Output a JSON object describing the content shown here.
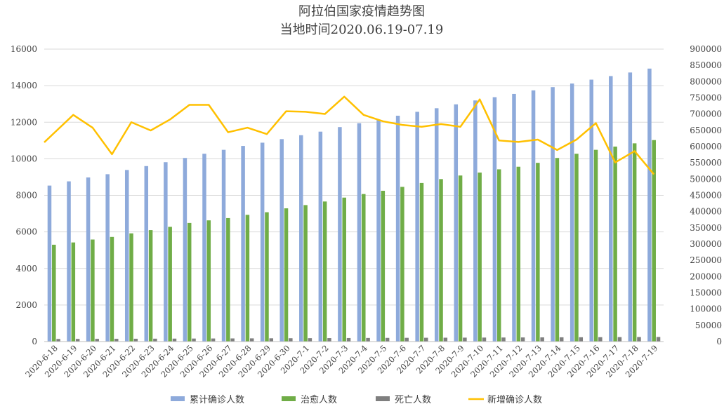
{
  "chart_data": {
    "type": "bar",
    "title": "阿拉伯国家疫情趋势图",
    "subtitle": "当地时间2020.06.19-07.19",
    "categories": [
      "2020-6-18",
      "2020-6-19",
      "2020-6-20",
      "2020-6-21",
      "2020-6-22",
      "2020-6-23",
      "2020-6-24",
      "2020-6-25",
      "2020-6-26",
      "2020-6-27",
      "2020-6-28",
      "2020-6-29",
      "2020-6-30",
      "2020-7-1",
      "2020-7-2",
      "2020-7-3",
      "2020-7-4",
      "2020-7-5",
      "2020-7-6",
      "2020-7-7",
      "2020-7-8",
      "2020-7-9",
      "2020-7-10",
      "2020-7-11",
      "2020-7-12",
      "2020-7-13",
      "2020-7-14",
      "2020-7-15",
      "2020-7-16",
      "2020-7-17",
      "2020-7-18",
      "2020-7-19"
    ],
    "left_axis": {
      "ylim": [
        0,
        16000
      ],
      "ticks": [
        "0",
        "2000",
        "4000",
        "6000",
        "8000",
        "10000",
        "12000",
        "14000",
        "16000"
      ]
    },
    "right_axis": {
      "ylim": [
        0,
        900000
      ],
      "ticks": [
        "0",
        "50000",
        "100000",
        "150000",
        "200000",
        "250000",
        "300000",
        "350000",
        "400000",
        "450000",
        "500000",
        "550000",
        "600000",
        "650000",
        "700000",
        "750000",
        "800000",
        "850000",
        "900000"
      ]
    },
    "grid": true,
    "legend_position": "bottom",
    "series": [
      {
        "name": "累计确诊人数",
        "type": "bar",
        "axis": "right",
        "color": "#8eaadb",
        "values": [
          480000,
          493000,
          505000,
          515000,
          528000,
          540000,
          552000,
          565000,
          578000,
          590000,
          602000,
          612000,
          623000,
          635000,
          646000,
          660000,
          672000,
          683000,
          695000,
          707000,
          718000,
          730000,
          742000,
          752000,
          762000,
          773000,
          783000,
          794000,
          806000,
          817000,
          828000,
          840000
        ]
      },
      {
        "name": "治愈人数",
        "type": "bar",
        "axis": "right",
        "color": "#70ad47",
        "values": [
          298000,
          305000,
          314000,
          322000,
          333000,
          343000,
          353000,
          365000,
          373000,
          380000,
          390000,
          398000,
          410000,
          420000,
          431000,
          443000,
          454000,
          464000,
          476000,
          488000,
          500000,
          511000,
          520000,
          530000,
          538000,
          550000,
          565000,
          578000,
          590000,
          600000,
          610000,
          620000
        ]
      },
      {
        "name": "死亡人数",
        "type": "bar",
        "axis": "right",
        "color": "#7f7f7f",
        "values": [
          8000,
          8200,
          8400,
          8500,
          8700,
          8900,
          9100,
          9300,
          9500,
          9700,
          9900,
          10100,
          10300,
          10500,
          10700,
          10900,
          11100,
          11300,
          11500,
          11700,
          11900,
          12100,
          12300,
          12500,
          12700,
          12900,
          13100,
          13300,
          13500,
          13700,
          13900,
          14100
        ]
      },
      {
        "name": "新增确诊人数",
        "type": "line",
        "axis": "left",
        "color": "#ffc000",
        "values": [
          11400,
          12400,
          11700,
          10250,
          12000,
          11550,
          12150,
          12950,
          12950,
          11450,
          11700,
          11350,
          12600,
          12570,
          12450,
          13400,
          12400,
          12050,
          11850,
          11750,
          11900,
          11750,
          13250,
          11000,
          10920,
          11050,
          10480,
          11050,
          11950,
          9800,
          10420,
          9150
        ]
      }
    ]
  }
}
